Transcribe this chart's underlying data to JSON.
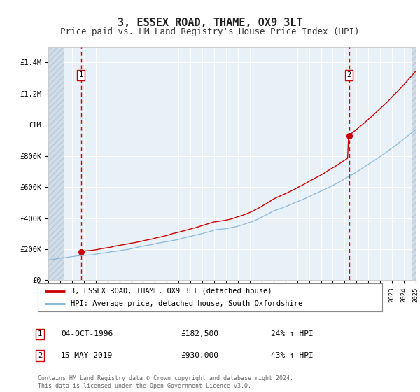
{
  "title": "3, ESSEX ROAD, THAME, OX9 3LT",
  "subtitle": "Price paid vs. HM Land Registry's House Price Index (HPI)",
  "title_fontsize": 11,
  "subtitle_fontsize": 9,
  "ylim": [
    0,
    1500000
  ],
  "yticks": [
    0,
    200000,
    400000,
    600000,
    800000,
    1000000,
    1200000,
    1400000
  ],
  "ytick_labels": [
    "£0",
    "£200K",
    "£400K",
    "£600K",
    "£800K",
    "£1M",
    "£1.2M",
    "£1.4M"
  ],
  "plot_bg_color": "#e8f0f8",
  "fig_bg_color": "#ffffff",
  "grid_color": "#ffffff",
  "sale1_year": 1996.75,
  "sale1_price": 182500,
  "sale2_year": 2019.37,
  "sale2_price": 930000,
  "legend_line1": "3, ESSEX ROAD, THAME, OX9 3LT (detached house)",
  "legend_line2": "HPI: Average price, detached house, South Oxfordshire",
  "footer": "Contains HM Land Registry data © Crown copyright and database right 2024.\nThis data is licensed under the Open Government Licence v3.0.",
  "red_color": "#cc0000",
  "blue_color": "#7bafd4",
  "xstart": 1994,
  "xend": 2025
}
